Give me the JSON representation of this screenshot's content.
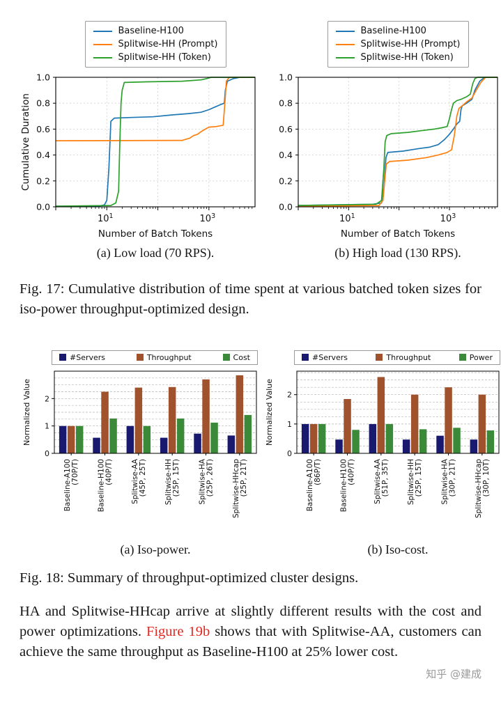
{
  "page": {
    "watermark": "知乎 @建成",
    "link_color": "#e5261f"
  },
  "fig17": {
    "caption": "Fig. 17: Cumulative distribution of time spent at various batched token sizes for iso-power throughput-optimized design.",
    "subcaption_a": "(a) Low load (70 RPS).",
    "subcaption_b": "(b) High load (130 RPS)."
  },
  "fig18": {
    "caption": "Fig. 18: Summary of throughput-optimized cluster designs.",
    "subcaption_a": "(a) Iso-power.",
    "subcaption_b": "(b) Iso-cost."
  },
  "paragraph": {
    "part1": "HA and Splitwise-HHcap arrive at slightly different results with the cost and power optimizations. ",
    "link": "Figure 19b",
    "part2": " shows that with Splitwise-AA, customers can achieve the same throughput as Baseline-H100 at 25% lower cost."
  },
  "chart_data": [
    {
      "id": "cdf-low-load",
      "type": "line",
      "xlabel": "Number of Batch Tokens",
      "ylabel": "Cumulative Duration",
      "xscale": "log",
      "xlim": [
        1,
        8000
      ],
      "ylim": [
        0,
        1.0
      ],
      "yticks": [
        0,
        0.2,
        0.4,
        0.6,
        0.8,
        1.0
      ],
      "xticks": [
        10,
        1000
      ],
      "legend_position": "above",
      "grid": true,
      "colors": [
        "#1f77b4",
        "#ff7f0e",
        "#2ca02c"
      ],
      "series": [
        {
          "name": "Baseline-H100",
          "points": [
            [
              1,
              0.005
            ],
            [
              7,
              0.005
            ],
            [
              9,
              0.015
            ],
            [
              10,
              0.05
            ],
            [
              11,
              0.3
            ],
            [
              12,
              0.66
            ],
            [
              14,
              0.685
            ],
            [
              30,
              0.69
            ],
            [
              80,
              0.695
            ],
            [
              200,
              0.71
            ],
            [
              400,
              0.72
            ],
            [
              700,
              0.73
            ],
            [
              1000,
              0.75
            ],
            [
              1300,
              0.77
            ],
            [
              1700,
              0.79
            ],
            [
              2000,
              0.8
            ],
            [
              2100,
              0.9
            ],
            [
              2300,
              0.97
            ],
            [
              3000,
              0.99
            ],
            [
              4000,
              1
            ],
            [
              8000,
              1
            ]
          ]
        },
        {
          "name": "Splitwise-HH (Prompt)",
          "points": [
            [
              1,
              0.51
            ],
            [
              300,
              0.513
            ],
            [
              420,
              0.53
            ],
            [
              500,
              0.55
            ],
            [
              600,
              0.56
            ],
            [
              700,
              0.58
            ],
            [
              850,
              0.6
            ],
            [
              1000,
              0.615
            ],
            [
              1400,
              0.62
            ],
            [
              1900,
              0.63
            ],
            [
              2050,
              0.8
            ],
            [
              2200,
              0.97
            ],
            [
              2500,
              1
            ],
            [
              8000,
              1
            ]
          ]
        },
        {
          "name": "Splitwise-HH (Token)",
          "points": [
            [
              1,
              0.005
            ],
            [
              12,
              0.01
            ],
            [
              15,
              0.03
            ],
            [
              17,
              0.12
            ],
            [
              18,
              0.5
            ],
            [
              19,
              0.8
            ],
            [
              20,
              0.9
            ],
            [
              22,
              0.96
            ],
            [
              60,
              0.965
            ],
            [
              300,
              0.97
            ],
            [
              700,
              0.98
            ],
            [
              900,
              0.99
            ],
            [
              1100,
              1
            ],
            [
              8000,
              1
            ]
          ]
        }
      ]
    },
    {
      "id": "cdf-high-load",
      "type": "line",
      "xlabel": "Number of Batch Tokens",
      "ylabel": "",
      "xscale": "log",
      "xlim": [
        1,
        9000
      ],
      "ylim": [
        0,
        1.0
      ],
      "yticks": [
        0,
        0.2,
        0.4,
        0.6,
        0.8,
        1.0
      ],
      "xticks": [
        10,
        1000
      ],
      "legend_position": "above",
      "grid": true,
      "colors": [
        "#1f77b4",
        "#ff7f0e",
        "#2ca02c"
      ],
      "series": [
        {
          "name": "Baseline-H100",
          "points": [
            [
              1,
              0.01
            ],
            [
              30,
              0.02
            ],
            [
              45,
              0.03
            ],
            [
              50,
              0.15
            ],
            [
              55,
              0.38
            ],
            [
              60,
              0.42
            ],
            [
              120,
              0.43
            ],
            [
              250,
              0.45
            ],
            [
              400,
              0.46
            ],
            [
              600,
              0.48
            ],
            [
              800,
              0.52
            ],
            [
              1000,
              0.56
            ],
            [
              1200,
              0.6
            ],
            [
              1400,
              0.64
            ],
            [
              1600,
              0.66
            ],
            [
              1700,
              0.75
            ],
            [
              1800,
              0.78
            ],
            [
              2200,
              0.8
            ],
            [
              2800,
              0.83
            ],
            [
              3200,
              0.9
            ],
            [
              4000,
              0.97
            ],
            [
              5000,
              1
            ],
            [
              9000,
              1
            ]
          ]
        },
        {
          "name": "Splitwise-HH (Prompt)",
          "points": [
            [
              1,
              0.005
            ],
            [
              40,
              0.01
            ],
            [
              48,
              0.05
            ],
            [
              52,
              0.2
            ],
            [
              56,
              0.33
            ],
            [
              65,
              0.35
            ],
            [
              150,
              0.36
            ],
            [
              350,
              0.38
            ],
            [
              600,
              0.4
            ],
            [
              900,
              0.42
            ],
            [
              1100,
              0.44
            ],
            [
              1250,
              0.55
            ],
            [
              1400,
              0.7
            ],
            [
              1550,
              0.76
            ],
            [
              1800,
              0.78
            ],
            [
              2200,
              0.81
            ],
            [
              2800,
              0.84
            ],
            [
              3400,
              0.9
            ],
            [
              4200,
              0.96
            ],
            [
              5200,
              1
            ],
            [
              9000,
              1
            ]
          ]
        },
        {
          "name": "Splitwise-HH (Token)",
          "points": [
            [
              1,
              0.01
            ],
            [
              35,
              0.02
            ],
            [
              45,
              0.05
            ],
            [
              50,
              0.3
            ],
            [
              53,
              0.5
            ],
            [
              57,
              0.55
            ],
            [
              70,
              0.565
            ],
            [
              150,
              0.575
            ],
            [
              300,
              0.59
            ],
            [
              500,
              0.6
            ],
            [
              700,
              0.61
            ],
            [
              900,
              0.62
            ],
            [
              1000,
              0.68
            ],
            [
              1100,
              0.75
            ],
            [
              1200,
              0.8
            ],
            [
              1400,
              0.82
            ],
            [
              1700,
              0.83
            ],
            [
              2200,
              0.85
            ],
            [
              2600,
              0.87
            ],
            [
              2900,
              0.95
            ],
            [
              3200,
              0.99
            ],
            [
              3600,
              1
            ],
            [
              9000,
              1
            ]
          ]
        }
      ]
    },
    {
      "id": "iso-power-bars",
      "type": "bar",
      "ylabel": "Normalized Value",
      "ylim": [
        0,
        3.0
      ],
      "yticks": [
        0,
        1,
        2
      ],
      "grid": true,
      "legend_position": "top",
      "colors": [
        "#191970",
        "#a0522d",
        "#3a8a3a"
      ],
      "categories": [
        {
          "name": "Baseline-A100",
          "sub": "(70P/T)"
        },
        {
          "name": "Baseline-H100",
          "sub": "(40P/T)"
        },
        {
          "name": "Splitwise-AA",
          "sub": "(45P, 25T)"
        },
        {
          "name": "Splitwise-HH",
          "sub": "(25P, 15T)"
        },
        {
          "name": "Splitwise-HA",
          "sub": "(25P, 26T)"
        },
        {
          "name": "Splitwise-HHcap",
          "sub": "(25P, 21T)"
        }
      ],
      "series": [
        {
          "name": "#Servers",
          "values": [
            1.0,
            0.57,
            1.0,
            0.57,
            0.72,
            0.65
          ]
        },
        {
          "name": "Throughput",
          "values": [
            1.0,
            2.25,
            2.4,
            2.42,
            2.7,
            2.85
          ]
        },
        {
          "name": "Cost",
          "values": [
            1.0,
            1.27,
            1.0,
            1.27,
            1.12,
            1.4
          ]
        }
      ]
    },
    {
      "id": "iso-cost-bars",
      "type": "bar",
      "ylabel": "Normalized Value",
      "ylim": [
        0,
        2.8
      ],
      "yticks": [
        0,
        1,
        2
      ],
      "grid": true,
      "legend_position": "top",
      "colors": [
        "#191970",
        "#a0522d",
        "#3a8a3a"
      ],
      "categories": [
        {
          "name": "Baseline-A100",
          "sub": "(86P/T)"
        },
        {
          "name": "Baseline-H100",
          "sub": "(40P/T)"
        },
        {
          "name": "Splitwise-AA",
          "sub": "(51P, 35T)"
        },
        {
          "name": "Splitwise-HH",
          "sub": "(25P, 15T)"
        },
        {
          "name": "Splitwise-HA",
          "sub": "(30P, 21T)"
        },
        {
          "name": "Splitwise-HHcap",
          "sub": "(30P, 10T)"
        }
      ],
      "series": [
        {
          "name": "#Servers",
          "values": [
            1.0,
            0.47,
            1.0,
            0.47,
            0.6,
            0.47
          ]
        },
        {
          "name": "Throughput",
          "values": [
            1.0,
            1.85,
            2.6,
            2.0,
            2.25,
            2.0
          ]
        },
        {
          "name": "Power",
          "values": [
            1.0,
            0.8,
            1.0,
            0.82,
            0.87,
            0.78
          ]
        }
      ]
    }
  ]
}
